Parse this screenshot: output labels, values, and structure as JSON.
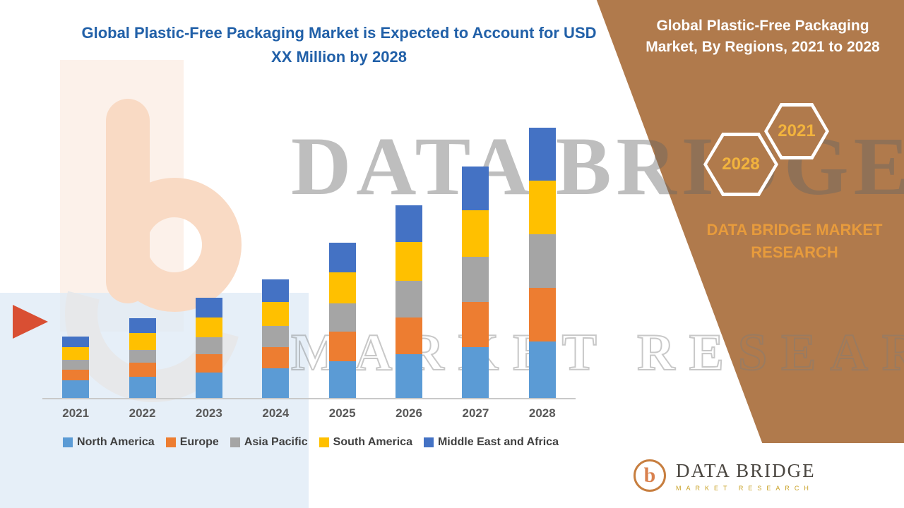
{
  "header": {
    "title": "Global Plastic-Free Packaging Market is Expected to Account for USD XX Million by 2028"
  },
  "side_panel": {
    "title": "Global Plastic-Free Packaging Market, By Regions, 2021 to 2028",
    "hexagon_left": "2028",
    "hexagon_right": "2021",
    "brand": "DATA BRIDGE MARKET RESEARCH",
    "panel_color": "#B07A4C",
    "accent_color": "#E79B3C"
  },
  "watermark": {
    "line1": "DATA BRIDGE",
    "line2": "MARKET RESEARCH"
  },
  "logo": {
    "title": "DATA BRIDGE",
    "subtitle": "MARKET RESEARCH"
  },
  "chart_data": {
    "type": "bar",
    "stacked": true,
    "title": "Global Plastic-Free Packaging Market, By Regions, 2021 to 2028",
    "categories": [
      "2021",
      "2022",
      "2023",
      "2024",
      "2025",
      "2026",
      "2027",
      "2028"
    ],
    "series": [
      {
        "name": "North America",
        "color": "#5B9BD5",
        "values": [
          25,
          30,
          36,
          42,
          52,
          62,
          72,
          80
        ]
      },
      {
        "name": "Europe",
        "color": "#ED7D31",
        "values": [
          15,
          20,
          26,
          30,
          42,
          52,
          64,
          76
        ]
      },
      {
        "name": "Asia Pacific",
        "color": "#A5A5A5",
        "values": [
          14,
          18,
          24,
          30,
          40,
          52,
          64,
          76
        ]
      },
      {
        "name": "South America",
        "color": "#FFC000",
        "values": [
          18,
          24,
          28,
          34,
          44,
          55,
          66,
          76
        ]
      },
      {
        "name": "Middle East and Africa",
        "color": "#4472C4",
        "values": [
          15,
          21,
          28,
          32,
          42,
          52,
          62,
          75
        ]
      }
    ],
    "xlabel": "",
    "ylabel": "",
    "ylim": [
      0,
      400
    ],
    "grid": false,
    "legend_position": "bottom",
    "note": "Values not labeled in chart (shown as USD XX Million); series values estimated from bar heights in relative units."
  }
}
